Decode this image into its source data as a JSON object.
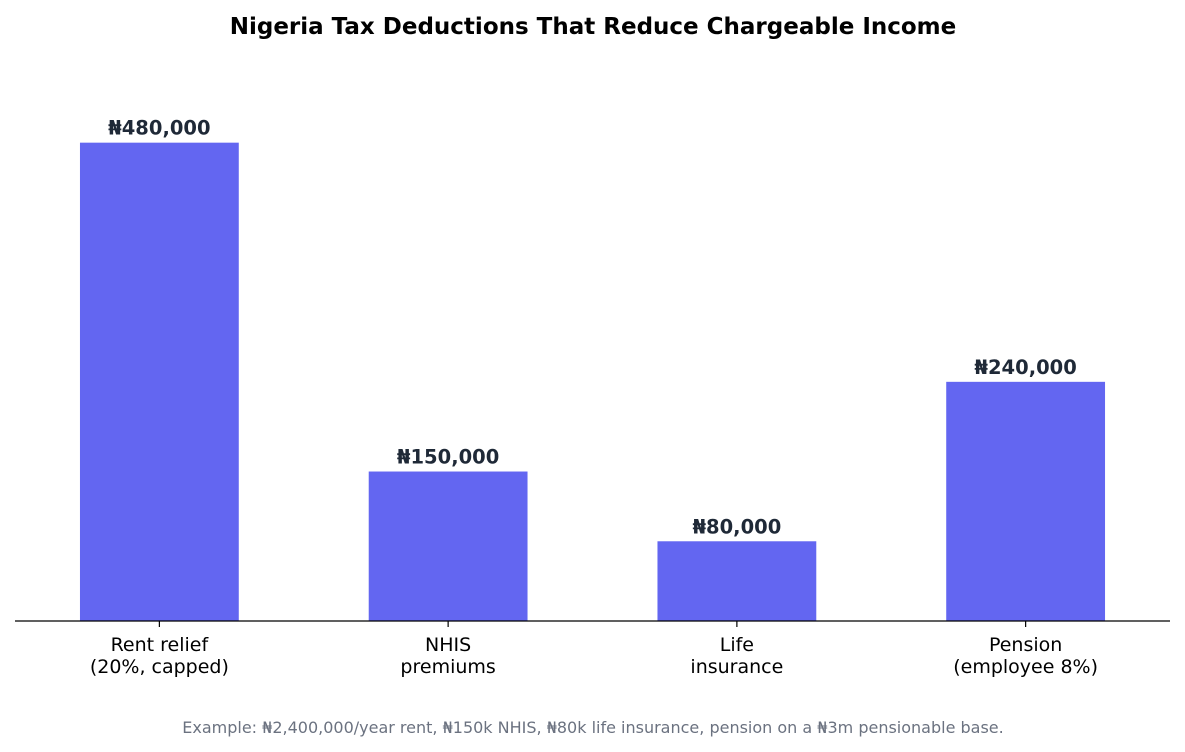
{
  "chart_data": {
    "type": "bar",
    "title": "Nigeria Tax Deductions That Reduce Chargeable Income",
    "categories": [
      [
        "Rent relief",
        "(20%, capped)"
      ],
      [
        "NHIS",
        "premiums"
      ],
      [
        "Life",
        "insurance"
      ],
      [
        "Pension",
        "(employee 8%)"
      ]
    ],
    "values": [
      480000,
      150000,
      80000,
      240000
    ],
    "data_labels": [
      "₦480,000",
      "₦150,000",
      "₦80,000",
      "₦240,000"
    ],
    "xlabel": "",
    "ylabel": "",
    "ylim": [
      0,
      576000
    ],
    "grid": false,
    "y_axis_visible": false,
    "bar_color": "#6366f1",
    "label_color": "#1f2937",
    "footnote": "Example: ₦2,400,000/year rent, ₦150k NHIS, ₦80k life insurance, pension on a ₦3m pensionable base."
  }
}
